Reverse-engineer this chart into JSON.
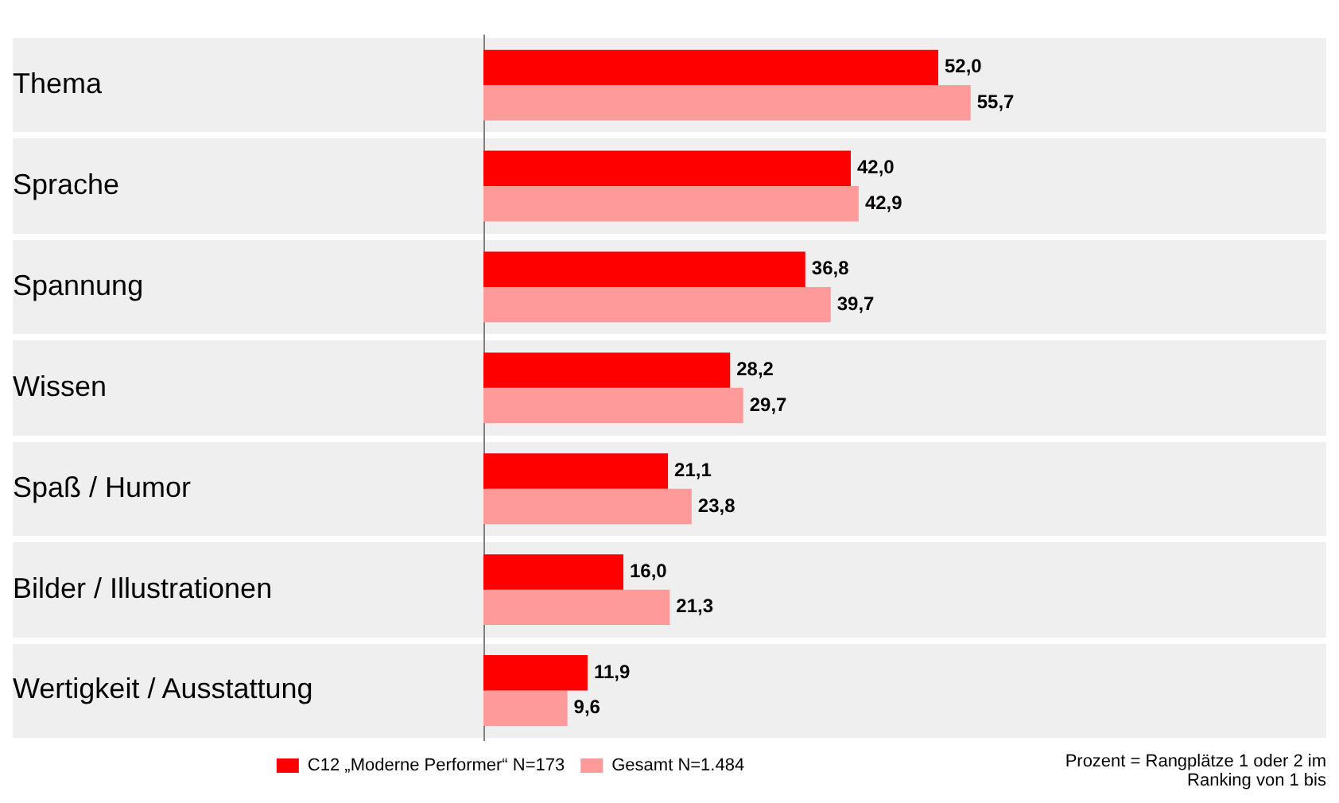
{
  "chart_data": {
    "type": "bar",
    "orientation": "horizontal",
    "categories": [
      "Thema",
      "Sprache",
      "Spannung",
      "Wissen",
      "Spaß / Humor",
      "Bilder / Illustrationen",
      "Wertigkeit / Ausstattung"
    ],
    "series": [
      {
        "name": "C12 „Moderne Performer“ N=173",
        "color": "#ff0000",
        "values": [
          52.0,
          42.0,
          36.8,
          28.2,
          21.1,
          16.0,
          11.9
        ],
        "value_labels": [
          "52,0",
          "42,0",
          "36,8",
          "28,2",
          "21,1",
          "16,0",
          "11,9"
        ]
      },
      {
        "name": "Gesamt N=1.484",
        "color": "#ff9a9a",
        "values": [
          55.7,
          42.9,
          39.7,
          29.7,
          23.8,
          21.3,
          9.6
        ],
        "value_labels": [
          "55,7",
          "42,9",
          "39,7",
          "29,7",
          "23,8",
          "21,3",
          "9,6"
        ]
      }
    ],
    "tick_labels": "y",
    "legend": "bottom",
    "annotations": [
      "Prozent = Rangplätze 1 oder 2 im Ranking von 1 bis"
    ]
  }
}
